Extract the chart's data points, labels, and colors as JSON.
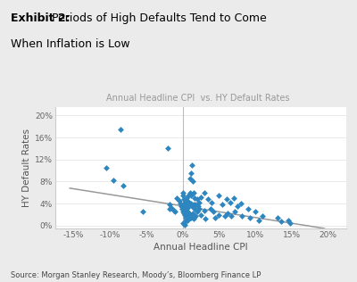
{
  "title_bold": "Exhibit 2:",
  "title_rest": "  Periods of High Defaults Tend to Come\nWhen Inflation is Low",
  "subtitle": "Annual Headline CPI  vs. HY Default Rates",
  "xlabel": "Annual Headline CPI",
  "ylabel": "HY Default Rates",
  "source": "Source: Morgan Stanley Research, Moody’s, Bloomberg Finance LP",
  "fig_bg": "#ebebeb",
  "plot_bg": "#ffffff",
  "scatter_color": "#2E86C1",
  "trendline_color": "#999999",
  "xlim": [
    -0.175,
    0.225
  ],
  "ylim": [
    -0.005,
    0.215
  ],
  "xticks": [
    -0.15,
    -0.1,
    -0.05,
    0.0,
    0.05,
    0.1,
    0.15,
    0.2
  ],
  "yticks": [
    0.0,
    0.04,
    0.08,
    0.12,
    0.16,
    0.2
  ],
  "scatter_x": [
    -0.105,
    -0.095,
    -0.085,
    -0.082,
    -0.055,
    -0.018,
    -0.015,
    -0.012,
    -0.01,
    -0.008,
    -0.005,
    -0.003,
    -0.002,
    -0.001,
    -0.02,
    -0.018,
    0.0,
    0.0,
    0.001,
    0.001,
    0.002,
    0.002,
    0.002,
    0.003,
    0.003,
    0.003,
    0.004,
    0.004,
    0.004,
    0.004,
    0.005,
    0.005,
    0.005,
    0.005,
    0.005,
    0.006,
    0.006,
    0.006,
    0.007,
    0.007,
    0.007,
    0.008,
    0.008,
    0.008,
    0.009,
    0.009,
    0.01,
    0.01,
    0.01,
    0.01,
    0.011,
    0.011,
    0.011,
    0.012,
    0.012,
    0.013,
    0.013,
    0.014,
    0.014,
    0.015,
    0.015,
    0.015,
    0.016,
    0.017,
    0.018,
    0.018,
    0.02,
    0.02,
    0.021,
    0.022,
    0.023,
    0.025,
    0.025,
    0.03,
    0.03,
    0.031,
    0.035,
    0.038,
    0.04,
    0.042,
    0.045,
    0.05,
    0.05,
    0.055,
    0.058,
    0.06,
    0.062,
    0.065,
    0.067,
    0.07,
    0.072,
    0.075,
    0.08,
    0.082,
    0.09,
    0.092,
    0.1,
    0.105,
    0.11,
    0.13,
    0.135,
    0.145,
    0.148,
    0.001,
    0.002,
    0.003
  ],
  "scatter_y": [
    0.105,
    0.083,
    0.175,
    0.072,
    0.025,
    0.038,
    0.032,
    0.028,
    0.025,
    0.05,
    0.045,
    0.04,
    0.035,
    0.03,
    0.14,
    0.03,
    0.06,
    0.025,
    0.055,
    0.035,
    0.048,
    0.03,
    0.022,
    0.042,
    0.038,
    0.02,
    0.035,
    0.028,
    0.015,
    0.01,
    0.05,
    0.038,
    0.028,
    0.02,
    0.01,
    0.045,
    0.032,
    0.015,
    0.042,
    0.025,
    0.01,
    0.055,
    0.035,
    0.018,
    0.04,
    0.022,
    0.085,
    0.06,
    0.04,
    0.015,
    0.095,
    0.055,
    0.02,
    0.04,
    0.015,
    0.11,
    0.035,
    0.08,
    0.022,
    0.06,
    0.038,
    0.012,
    0.03,
    0.05,
    0.038,
    0.018,
    0.048,
    0.025,
    0.035,
    0.042,
    0.03,
    0.052,
    0.02,
    0.06,
    0.028,
    0.012,
    0.048,
    0.03,
    0.042,
    0.025,
    0.015,
    0.055,
    0.02,
    0.038,
    0.018,
    0.048,
    0.022,
    0.042,
    0.018,
    0.05,
    0.025,
    0.035,
    0.04,
    0.018,
    0.03,
    0.015,
    0.025,
    0.01,
    0.018,
    0.015,
    0.008,
    0.01,
    0.005,
    0.005,
    0.003,
    0.002
  ],
  "trendline_x": [
    -0.155,
    0.195
  ],
  "trendline_y": [
    0.068,
    -0.005
  ]
}
